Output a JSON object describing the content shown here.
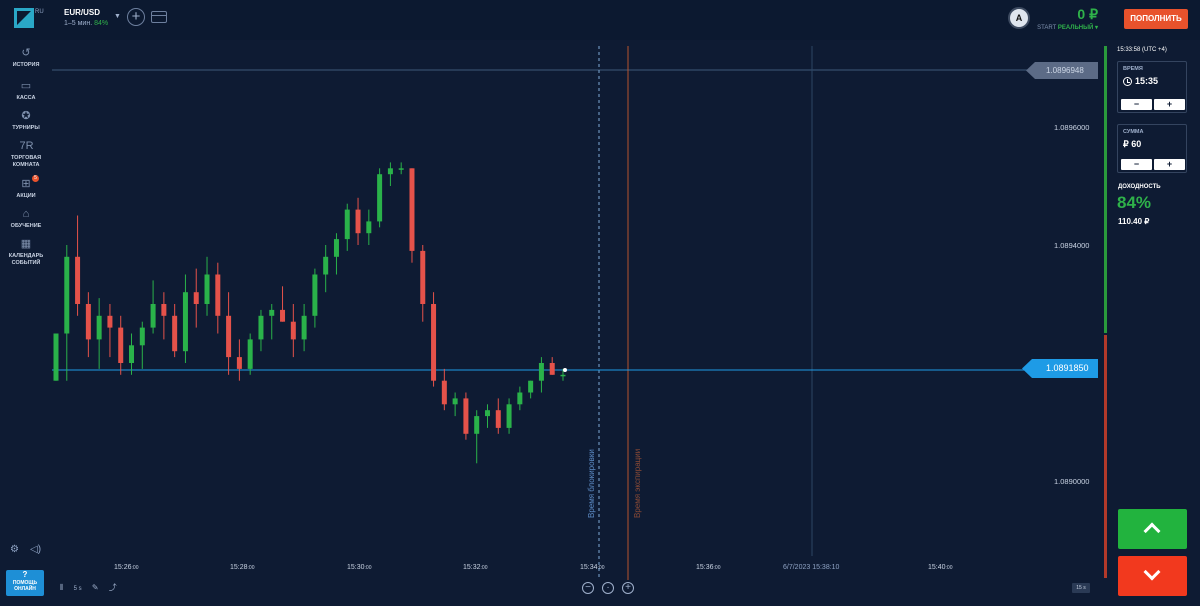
{
  "header": {
    "logo_suffix": "RU",
    "asset": "EUR/USD",
    "timeframe": "1–5 мин.",
    "payout": "84%",
    "avatar_letter": "A",
    "balance": "0 ₽",
    "mode_prefix": "START",
    "mode": "РЕАЛЬНЫЙ ▾",
    "deposit_label": "ПОПОЛНИТЬ"
  },
  "sidebar": {
    "items": [
      {
        "label": "ИСТОРИЯ",
        "icon": "history-icon"
      },
      {
        "label": "КАССА",
        "icon": "wallet-icon"
      },
      {
        "label": "ТУРНИРЫ",
        "icon": "star-icon"
      },
      {
        "label": "ТОРГОВАЯ КОМНАТА",
        "icon": "trading-room-icon",
        "glyph": "7R"
      },
      {
        "label": "АКЦИИ",
        "icon": "gift-icon",
        "badge": "5"
      },
      {
        "label": "ОБУЧЕНИЕ",
        "icon": "graduation-cap-icon"
      },
      {
        "label": "КАЛЕНДАРЬ СОБЫТИЙ",
        "icon": "calendar-icon"
      }
    ],
    "help_symbol": "?",
    "help_label": "ПОМОЩЬ ОНЛАЙН"
  },
  "chart": {
    "price_ticks": [
      "1.0896000",
      "1.0894000",
      "1.0890000"
    ],
    "current_price": "1.0891850",
    "upper_price": "1.0896948",
    "lock_label": "Время блокировки",
    "expiry_label": "Время экспирации",
    "time_ticks": [
      {
        "h": "15:26",
        "s": ":00"
      },
      {
        "h": "15:28",
        "s": ":00"
      },
      {
        "h": "15:30",
        "s": ":00"
      },
      {
        "h": "15:32",
        "s": ":00"
      },
      {
        "h": "15:34",
        "s": ":00"
      },
      {
        "h": "15:36",
        "s": ":00"
      },
      {
        "h": "15:38",
        "s": ":00"
      },
      {
        "h": "15:40",
        "s": ":00"
      }
    ],
    "expiry_time": "6/7/2023 15:38:10",
    "timeframe_tag": "15 s",
    "bottom_tool_label": "5 s"
  },
  "chart_data": {
    "type": "candlestick",
    "series": [
      {
        "name": "EUR/USD",
        "candles": [
          [
            1.08917,
            1.08925,
            1.08917,
            1.08925
          ],
          [
            1.08925,
            1.0894,
            1.08917,
            1.08938
          ],
          [
            1.08938,
            1.08945,
            1.08928,
            1.0893
          ],
          [
            1.0893,
            1.08932,
            1.08921,
            1.08924
          ],
          [
            1.08924,
            1.08931,
            1.08919,
            1.08928
          ],
          [
            1.08928,
            1.0893,
            1.08921,
            1.08926
          ],
          [
            1.08926,
            1.08928,
            1.08918,
            1.0892
          ],
          [
            1.0892,
            1.08925,
            1.08918,
            1.08923
          ],
          [
            1.08923,
            1.08927,
            1.08919,
            1.08926
          ],
          [
            1.08926,
            1.08934,
            1.08925,
            1.0893
          ],
          [
            1.0893,
            1.08932,
            1.08924,
            1.08928
          ],
          [
            1.08928,
            1.0893,
            1.08921,
            1.08922
          ],
          [
            1.08922,
            1.08935,
            1.0892,
            1.08932
          ],
          [
            1.08932,
            1.08936,
            1.08926,
            1.0893
          ],
          [
            1.0893,
            1.08938,
            1.08928,
            1.08935
          ],
          [
            1.08935,
            1.08937,
            1.08925,
            1.08928
          ],
          [
            1.08928,
            1.08932,
            1.08918,
            1.08921
          ],
          [
            1.08921,
            1.08924,
            1.08917,
            1.08919
          ],
          [
            1.08919,
            1.08925,
            1.08918,
            1.08924
          ],
          [
            1.08924,
            1.08929,
            1.08922,
            1.08928
          ],
          [
            1.08928,
            1.0893,
            1.08924,
            1.08929
          ],
          [
            1.08929,
            1.08933,
            1.08927,
            1.08927
          ],
          [
            1.08927,
            1.0893,
            1.08921,
            1.08924
          ],
          [
            1.08924,
            1.0893,
            1.08922,
            1.08928
          ],
          [
            1.08928,
            1.08936,
            1.08926,
            1.08935
          ],
          [
            1.08935,
            1.0894,
            1.08932,
            1.08938
          ],
          [
            1.08938,
            1.08942,
            1.08935,
            1.08941
          ],
          [
            1.08941,
            1.08947,
            1.08939,
            1.08946
          ],
          [
            1.08946,
            1.08948,
            1.0894,
            1.08942
          ],
          [
            1.08942,
            1.08946,
            1.0894,
            1.08944
          ],
          [
            1.08944,
            1.08953,
            1.08943,
            1.08952
          ],
          [
            1.08952,
            1.08954,
            1.0895,
            1.08953
          ],
          [
            1.08953,
            1.08954,
            1.08952,
            1.08953
          ],
          [
            1.08953,
            1.08953,
            1.08937,
            1.08939
          ],
          [
            1.08939,
            1.0894,
            1.08927,
            1.0893
          ],
          [
            1.0893,
            1.08932,
            1.08916,
            1.08917
          ],
          [
            1.08917,
            1.08919,
            1.08912,
            1.08913
          ],
          [
            1.08913,
            1.08915,
            1.08911,
            1.08914
          ],
          [
            1.08914,
            1.08915,
            1.08907,
            1.08908
          ],
          [
            1.08908,
            1.08912,
            1.08903,
            1.08911
          ],
          [
            1.08911,
            1.08913,
            1.08909,
            1.08912
          ],
          [
            1.08912,
            1.08914,
            1.08908,
            1.08909
          ],
          [
            1.08909,
            1.08914,
            1.08908,
            1.08913
          ],
          [
            1.08913,
            1.08916,
            1.08912,
            1.08915
          ],
          [
            1.08915,
            1.08917,
            1.08914,
            1.08917
          ],
          [
            1.08917,
            1.08921,
            1.08915,
            1.0892
          ],
          [
            1.0892,
            1.08921,
            1.08918,
            1.08918
          ],
          [
            1.08918,
            1.08919,
            1.08917,
            1.08918
          ]
        ]
      }
    ],
    "ylim": [
      1.08895,
      1.08975
    ],
    "xlabel": "",
    "ylabel": ""
  },
  "trade": {
    "clock": "15:33:58 (UTC +4)",
    "time_label": "ВРЕМЯ",
    "time_value": "15:35",
    "amount_label": "СУММА",
    "amount_value": "₽ 60",
    "minus": "−",
    "plus": "+",
    "profit_label": "ДОХОДНОСТЬ",
    "profit_pct": "84%",
    "profit_amount": "110.40 ₽"
  }
}
